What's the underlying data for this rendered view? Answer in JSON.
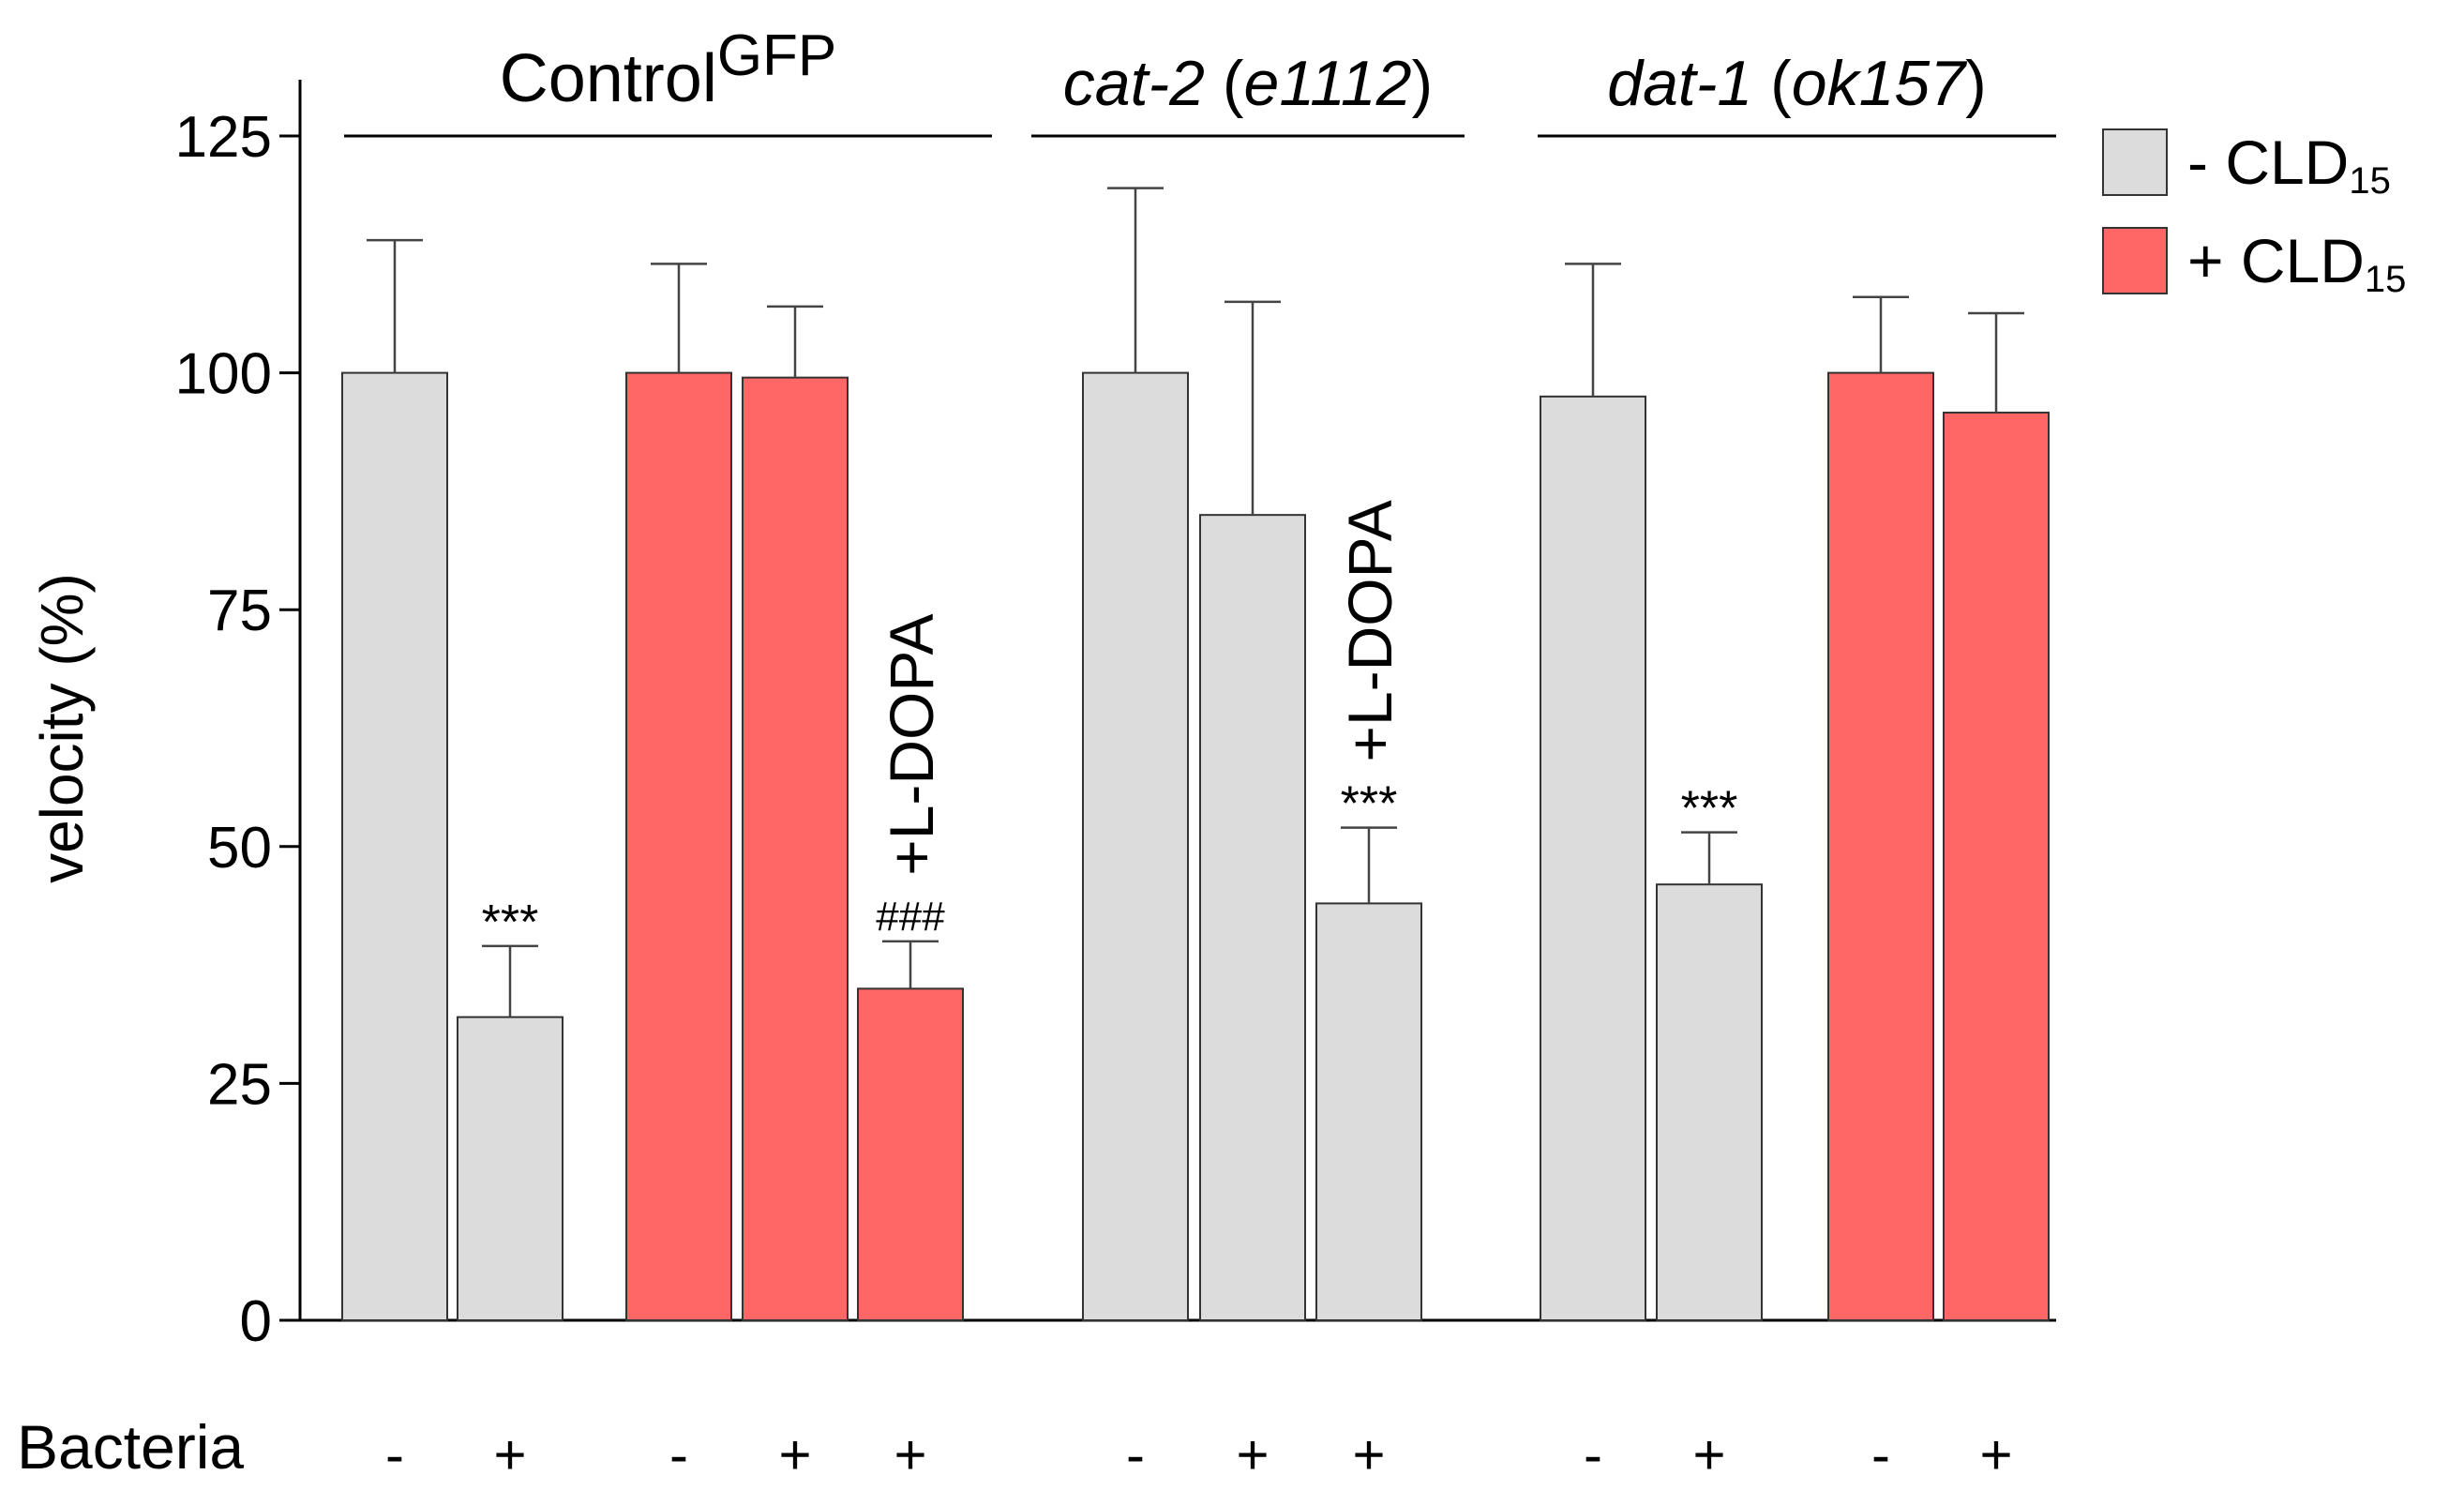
{
  "chart_data": {
    "type": "bar",
    "ylabel": "velocity (%)",
    "xlabel": "",
    "ylim": [
      0,
      125
    ],
    "yticks": [
      "0",
      "25",
      "50",
      "75",
      "100",
      "125"
    ],
    "grid": false,
    "legend": {
      "position": "top-right",
      "entries": [
        {
          "main": "- CLD",
          "sub": "15",
          "color": "#dcdcdc"
        },
        {
          "main": "+ CLD",
          "sub": "15",
          "color": "#ff6666"
        }
      ]
    },
    "row_label": "Bacteria",
    "groups": [
      {
        "name": "Control",
        "sup": "GFP",
        "italic": false,
        "first_bar": 0,
        "last_bar": 4
      },
      {
        "name": "cat-2",
        "paren": "e1112",
        "italic": true,
        "first_bar": 5,
        "last_bar": 7
      },
      {
        "name": "dat-1",
        "paren": "ok157",
        "italic": true,
        "first_bar": 8,
        "last_bar": 11
      }
    ],
    "bars": [
      {
        "group": "Control",
        "bacteria": "-",
        "cld": "-",
        "value": 100,
        "error": 14,
        "annotation": ""
      },
      {
        "group": "Control",
        "bacteria": "+",
        "cld": "-",
        "value": 32,
        "error": 7.5,
        "annotation": "***"
      },
      {
        "group": "Control",
        "bacteria": "-",
        "cld": "+",
        "value": 100,
        "error": 11.5,
        "annotation": ""
      },
      {
        "group": "Control",
        "bacteria": "+",
        "cld": "+",
        "value": 99.5,
        "error": 7.5,
        "annotation": ""
      },
      {
        "group": "Control",
        "bacteria": "+",
        "cld": "+",
        "value": 35,
        "error": 5,
        "annotation": "###",
        "label": "+L-DOPA"
      },
      {
        "group": "cat-2",
        "bacteria": "-",
        "cld": "-",
        "value": 100,
        "error": 19.5,
        "annotation": ""
      },
      {
        "group": "cat-2",
        "bacteria": "+",
        "cld": "-",
        "value": 85,
        "error": 22.5,
        "annotation": ""
      },
      {
        "group": "cat-2",
        "bacteria": "+",
        "cld": "-",
        "value": 44,
        "error": 8,
        "annotation": "***",
        "label": "+L-DOPA"
      },
      {
        "group": "dat-1",
        "bacteria": "-",
        "cld": "-",
        "value": 97.5,
        "error": 14,
        "annotation": ""
      },
      {
        "group": "dat-1",
        "bacteria": "+",
        "cld": "-",
        "value": 46,
        "error": 5.5,
        "annotation": "***"
      },
      {
        "group": "dat-1",
        "bacteria": "-",
        "cld": "+",
        "value": 100,
        "error": 8,
        "annotation": ""
      },
      {
        "group": "dat-1",
        "bacteria": "+",
        "cld": "+",
        "value": 95.8,
        "error": 10.5,
        "annotation": ""
      }
    ],
    "colors": {
      "minus_cld": "#dcdcdc",
      "plus_cld": "#ff6666",
      "axis": "#000000"
    }
  }
}
